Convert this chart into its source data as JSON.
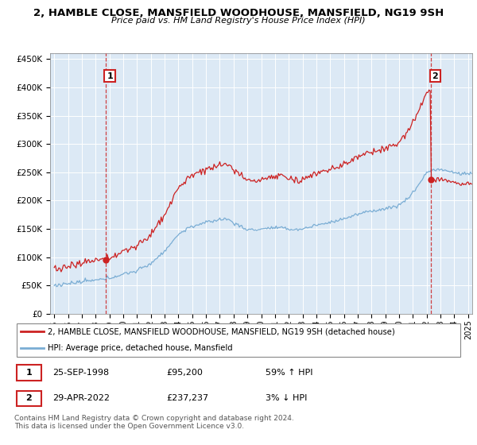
{
  "title1": "2, HAMBLE CLOSE, MANSFIELD WOODHOUSE, MANSFIELD, NG19 9SH",
  "title2": "Price paid vs. HM Land Registry's House Price Index (HPI)",
  "legend1": "2, HAMBLE CLOSE, MANSFIELD WOODHOUSE, MANSFIELD, NG19 9SH (detached house)",
  "legend2": "HPI: Average price, detached house, Mansfield",
  "copyright": "Contains HM Land Registry data © Crown copyright and database right 2024.\nThis data is licensed under the Open Government Licence v3.0.",
  "hpi_color": "#7aadd4",
  "price_color": "#cc2222",
  "vline_color": "#cc2222",
  "bg_color": "#dce9f5",
  "ylim": [
    0,
    460000
  ],
  "xlim_start": 1994.7,
  "xlim_end": 2025.3,
  "sale1_year": 1998.73,
  "sale1_price": 95200,
  "sale2_year": 2022.32,
  "sale2_price": 237237
}
